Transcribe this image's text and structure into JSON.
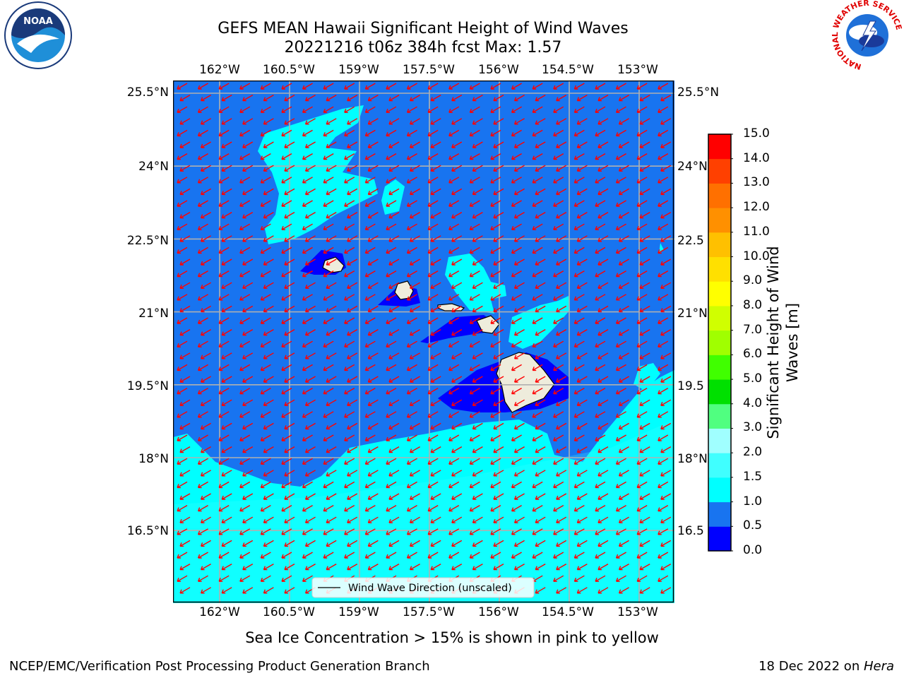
{
  "title": {
    "line1": "GEFS MEAN Hawaii Significant Height of Wind Waves",
    "line2": "20221216 t06z 384h fcst   Max: 1.57"
  },
  "map": {
    "lon_labels": [
      "162°W",
      "160.5°W",
      "159°W",
      "157.5°W",
      "156°W",
      "154.5°W",
      "153°W"
    ],
    "lat_labels_left": [
      "25.5°N",
      "24°N",
      "22.5°N",
      "21°N",
      "19.5°N",
      "18°N",
      "16.5°N"
    ],
    "lat_labels_right": [
      "25.5°N",
      "24°N",
      "22.5",
      "21°N",
      "19.5",
      "18°N",
      "16.5"
    ],
    "legend_label": "Wind Wave Direction (unscaled)",
    "ocean_color": "#1874f0",
    "land_color": "#eeecdc",
    "arrow_color": "#ff0000"
  },
  "colorbar": {
    "label_line1": "Significant Height of Wind",
    "label_line2": "Waves [m]",
    "ticks": [
      "0.0",
      "0.5",
      "1.0",
      "1.5",
      "2.0",
      "3.0",
      "4.0",
      "5.0",
      "6.0",
      "7.0",
      "8.0",
      "9.0",
      "10.0",
      "11.0",
      "12.0",
      "13.0",
      "14.0",
      "15.0"
    ],
    "colors": [
      "#0000ff",
      "#1874f0",
      "#00ffff",
      "#40ffff",
      "#a0ffff",
      "#50ff80",
      "#00e000",
      "#40ff00",
      "#a0ff00",
      "#d0ff00",
      "#ffff00",
      "#ffe000",
      "#ffc000",
      "#ff9000",
      "#ff7000",
      "#ff4000",
      "#ff0000"
    ]
  },
  "notes": {
    "sea_ice": "Sea Ice Concentration > 15% is shown in pink to yellow"
  },
  "footer": {
    "left": "NCEP/EMC/Verification Post Processing Product Generation Branch",
    "right_date": "18 Dec 2022 on ",
    "right_machine": "Hera"
  },
  "logos": {
    "noaa_text": "NOAA",
    "nws_text": "NATIONAL WEATHER SERVICE"
  }
}
